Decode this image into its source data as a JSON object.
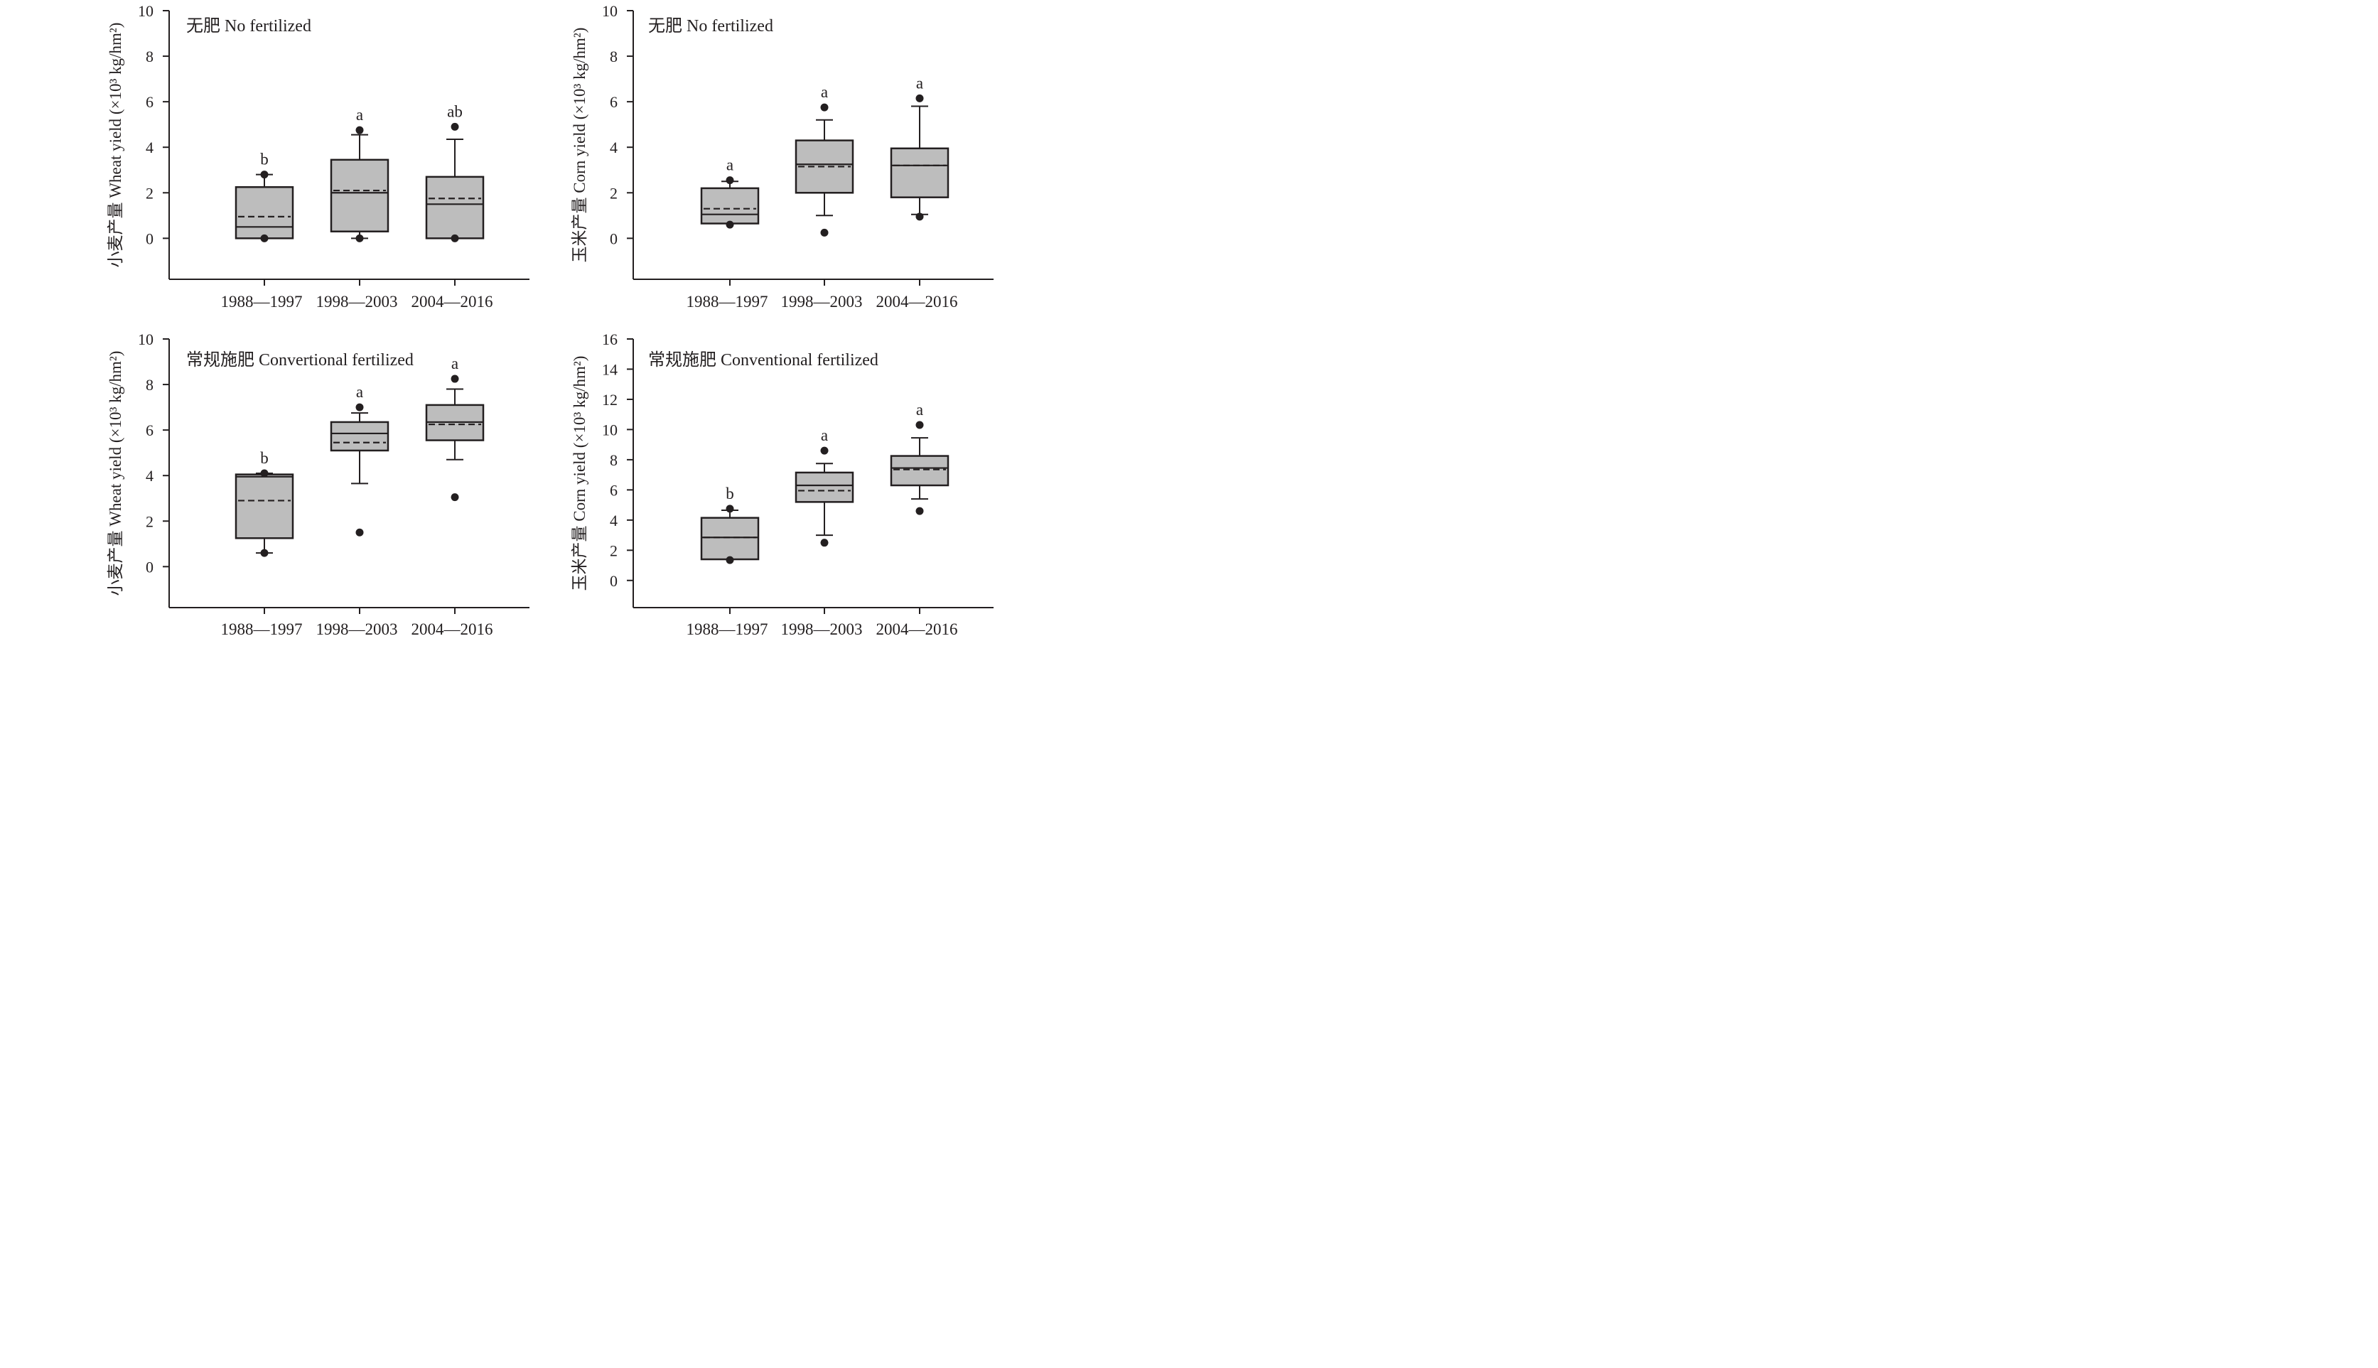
{
  "chart_data": [
    {
      "type": "box",
      "title": "无肥 No fertilized",
      "ylabel": "小麦产量 Wheat yield (×10³ kg/hm²)",
      "xlabel": "",
      "ylim": [
        -1.8,
        10
      ],
      "yticks": [
        0,
        2,
        4,
        6,
        8,
        10
      ],
      "categories": [
        "1988—1997",
        "1998—2003",
        "2004—2016"
      ],
      "boxes": [
        {
          "q1": 0.0,
          "median": 0.5,
          "mean": 0.95,
          "q3": 2.25,
          "whisker_low": 0.0,
          "whisker_high": 2.8,
          "outliers": [
            2.8,
            0.0
          ],
          "letter": "b"
        },
        {
          "q1": 0.3,
          "median": 2.0,
          "mean": 2.1,
          "q3": 3.45,
          "whisker_low": 0.0,
          "whisker_high": 4.55,
          "outliers": [
            4.75,
            0.0
          ],
          "letter": "a"
        },
        {
          "q1": 0.0,
          "median": 1.5,
          "mean": 1.75,
          "q3": 2.7,
          "whisker_low": 0.0,
          "whisker_high": 4.35,
          "outliers": [
            4.9,
            0.0
          ],
          "letter": "ab"
        }
      ]
    },
    {
      "type": "box",
      "title": "无肥 No fertilized",
      "ylabel": "玉米产量 Corn yield (×10³ kg/hm²)",
      "xlabel": "",
      "ylim": [
        -1.8,
        10
      ],
      "yticks": [
        0,
        2,
        4,
        6,
        8,
        10
      ],
      "categories": [
        "1988—1997",
        "1998—2003",
        "2004—2016"
      ],
      "boxes": [
        {
          "q1": 0.65,
          "median": 1.05,
          "mean": 1.3,
          "q3": 2.2,
          "whisker_low": 0.65,
          "whisker_high": 2.5,
          "outliers": [
            2.55,
            0.6
          ],
          "letter": "a"
        },
        {
          "q1": 2.0,
          "median": 3.25,
          "mean": 3.15,
          "q3": 4.3,
          "whisker_low": 1.0,
          "whisker_high": 5.2,
          "outliers": [
            5.75,
            0.25
          ],
          "letter": "a"
        },
        {
          "q1": 1.8,
          "median": 3.2,
          "mean": 3.2,
          "q3": 3.95,
          "whisker_low": 1.05,
          "whisker_high": 5.8,
          "outliers": [
            6.15,
            0.95
          ],
          "letter": "a"
        }
      ]
    },
    {
      "type": "box",
      "title": "常规施肥 Convertional fertilized",
      "ylabel": "小麦产量 Wheat yield (×10³ kg/hm²)",
      "xlabel": "",
      "ylim": [
        -1.8,
        10
      ],
      "yticks": [
        0,
        2,
        4,
        6,
        8,
        10
      ],
      "categories": [
        "1988—1997",
        "1998—2003",
        "2004—2016"
      ],
      "boxes": [
        {
          "q1": 1.25,
          "median": 3.95,
          "mean": 2.9,
          "q3": 4.05,
          "whisker_low": 0.6,
          "whisker_high": 4.1,
          "outliers": [
            4.1,
            0.6
          ],
          "letter": "b"
        },
        {
          "q1": 5.1,
          "median": 5.85,
          "mean": 5.45,
          "q3": 6.35,
          "whisker_low": 3.65,
          "whisker_high": 6.75,
          "outliers": [
            7.0,
            1.5
          ],
          "letter": "a"
        },
        {
          "q1": 5.55,
          "median": 6.35,
          "mean": 6.25,
          "q3": 7.1,
          "whisker_low": 4.7,
          "whisker_high": 7.8,
          "outliers": [
            8.25,
            3.05
          ],
          "letter": "a"
        }
      ]
    },
    {
      "type": "box",
      "title": "常规施肥 Conventional fertilized",
      "ylabel": "玉米产量 Corn yield (×10³ kg/hm²)",
      "xlabel": "",
      "ylim": [
        -1.8,
        16
      ],
      "yticks": [
        0,
        2,
        4,
        6,
        8,
        10,
        12,
        14,
        16
      ],
      "categories": [
        "1988—1997",
        "1998—2003",
        "2004—2016"
      ],
      "boxes": [
        {
          "q1": 1.4,
          "median": 2.85,
          "mean": 2.85,
          "q3": 4.15,
          "whisker_low": 1.4,
          "whisker_high": 4.65,
          "outliers": [
            4.75,
            1.35
          ],
          "letter": "b"
        },
        {
          "q1": 5.2,
          "median": 6.3,
          "mean": 5.95,
          "q3": 7.15,
          "whisker_low": 3.0,
          "whisker_high": 7.75,
          "outliers": [
            8.6,
            2.5
          ],
          "letter": "a"
        },
        {
          "q1": 6.3,
          "median": 7.45,
          "mean": 7.35,
          "q3": 8.25,
          "whisker_low": 5.4,
          "whisker_high": 9.45,
          "outliers": [
            10.3,
            4.6
          ],
          "letter": "a"
        }
      ]
    }
  ]
}
